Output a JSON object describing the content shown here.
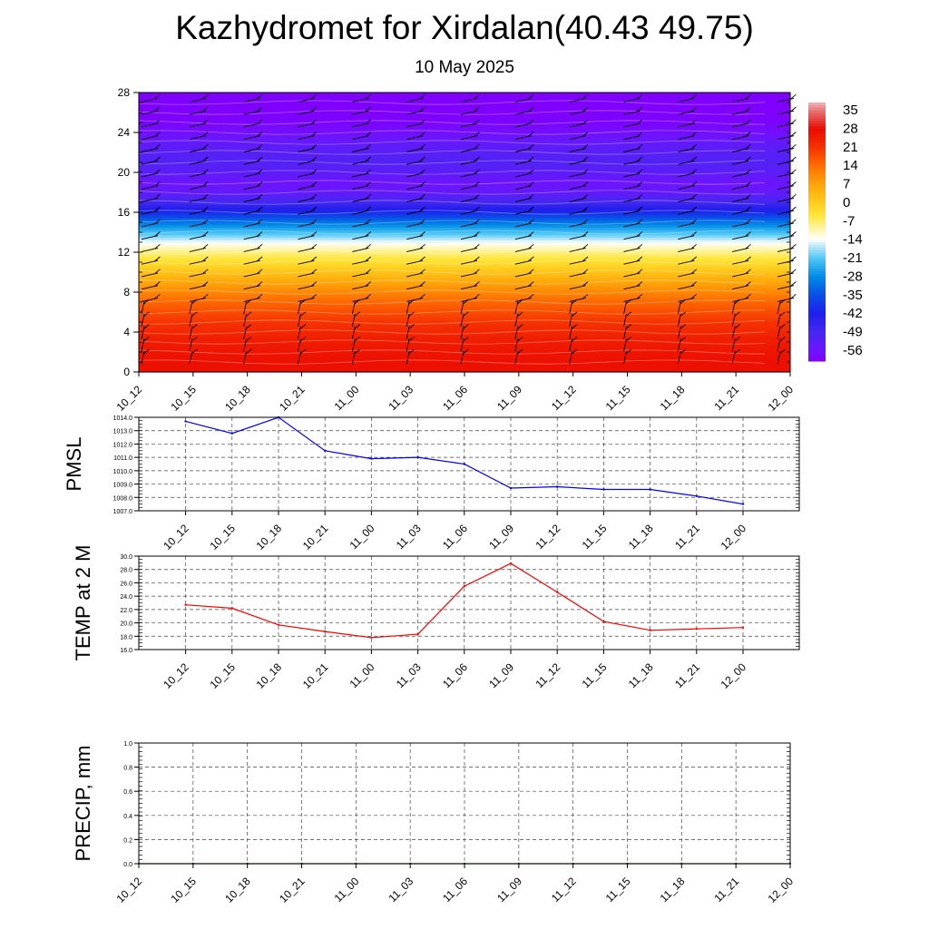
{
  "header": {
    "title": "Kazhydromet for Xirdalan(40.43 49.75)",
    "date": "10 May 2025"
  },
  "colors": {
    "pmsl_line": "#0000ff",
    "temp_line": "#ff0000",
    "precip_line": "#006400",
    "grid": "#444444"
  },
  "chart_data": [
    {
      "type": "heatmap",
      "name": "upper-air-temperature",
      "x": [
        "10_12",
        "10_15",
        "10_18",
        "10_21",
        "11_00",
        "11_03",
        "11_06",
        "11_09",
        "11_12",
        "11_15",
        "11_18",
        "11_21",
        "12_00"
      ],
      "xlabel": "",
      "ylabel": "",
      "y_ticks": [
        0,
        4,
        8,
        12,
        16,
        20,
        24,
        28
      ],
      "ylim": [
        0,
        28
      ],
      "levels": [
        0,
        1,
        2,
        3,
        4,
        5,
        6,
        7,
        8,
        9,
        10,
        11,
        12,
        13,
        14,
        15,
        16,
        17,
        18,
        19,
        20,
        21,
        22,
        23,
        24,
        25,
        26,
        27,
        28
      ],
      "temperature_profile": [
        27,
        27,
        26,
        25,
        23,
        21,
        18,
        15,
        11,
        7,
        2,
        -3,
        -8,
        -14,
        -22,
        -30,
        -40,
        -48,
        -54,
        -56,
        -53,
        -51,
        -52,
        -54,
        -57,
        -59,
        -60,
        -61,
        -62
      ],
      "colorbar_labels": [
        "35",
        "28",
        "21",
        "14",
        "7",
        "0",
        "-7",
        "-14",
        "-21",
        "-28",
        "-35",
        "-42",
        "-49",
        "-56"
      ],
      "colorbar_range": [
        -60,
        38
      ],
      "wind_barbs": true
    },
    {
      "type": "line",
      "name": "pmsl",
      "ylabel": "PMSL",
      "x": [
        "10_12",
        "10_15",
        "10_18",
        "10_21",
        "11_00",
        "11_03",
        "11_06",
        "11_09",
        "11_12",
        "11_15",
        "11_18",
        "11_21",
        "12_00"
      ],
      "values": [
        1013.7,
        1012.8,
        1014.0,
        1011.5,
        1010.9,
        1011.0,
        1010.5,
        1008.7,
        1008.8,
        1008.6,
        1008.6,
        1008.1,
        1007.5
      ],
      "y_ticks": [
        "1007.0",
        "1008.0",
        "1009.0",
        "1010.0",
        "1011.0",
        "1012.0",
        "1013.0",
        "1014.0"
      ],
      "ylim": [
        1007,
        1014
      ],
      "grid": true
    },
    {
      "type": "line",
      "name": "temperature-2m",
      "ylabel": "TEMP at 2 M",
      "x": [
        "10_12",
        "10_15",
        "10_18",
        "10_21",
        "11_00",
        "11_03",
        "11_06",
        "11_09",
        "11_12",
        "11_15",
        "11_18",
        "11_21",
        "12_00"
      ],
      "values": [
        22.7,
        22.2,
        19.7,
        18.7,
        17.8,
        18.3,
        25.5,
        28.9,
        24.6,
        20.2,
        18.9,
        19.1,
        19.3
      ],
      "y_ticks": [
        "16.0",
        "18.0",
        "20.0",
        "22.0",
        "24.0",
        "26.0",
        "28.0",
        "30.0"
      ],
      "ylim": [
        16,
        30
      ],
      "grid": true
    },
    {
      "type": "line",
      "name": "precipitation",
      "ylabel": "PRECIP, mm",
      "x": [
        "10_12",
        "10_15",
        "10_18",
        "10_21",
        "11_00",
        "11_03",
        "11_06",
        "11_09",
        "11_12",
        "11_15",
        "11_18",
        "11_21",
        "12_00"
      ],
      "values": [
        0,
        0,
        0,
        0,
        0,
        0,
        0,
        0,
        0,
        0,
        0,
        0,
        0
      ],
      "y_ticks": [
        "0.0",
        "0.2",
        "0.4",
        "0.6",
        "0.8",
        "1.0"
      ],
      "ylim": [
        0,
        1
      ],
      "grid": true
    }
  ]
}
